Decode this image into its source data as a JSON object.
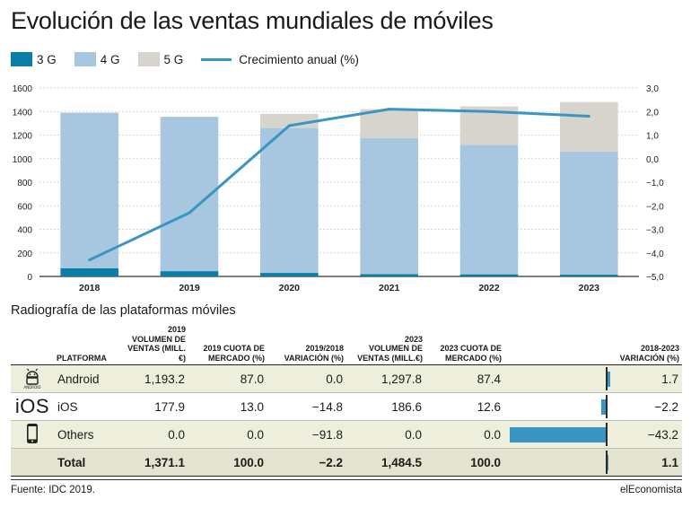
{
  "title": "Evolución de las ventas mundiales de móviles",
  "legend": {
    "g3": "3 G",
    "g4": "4 G",
    "g5": "5 G",
    "growth": "Crecimiento anual (%)"
  },
  "colors": {
    "g3": "#0b7ea8",
    "g4": "#a7c7e0",
    "g5": "#d7d4ce",
    "growth_line": "#3a95c3",
    "row_alt": "#eeeedd",
    "total_row": "#e3e3cf",
    "variation_bar": "#3a95c3"
  },
  "chart_data": {
    "type": "bar",
    "stacked": true,
    "categories": [
      "2018",
      "2019",
      "2020",
      "2021",
      "2022",
      "2023"
    ],
    "series": [
      {
        "name": "3 G",
        "values": [
          70,
          45,
          30,
          20,
          18,
          15
        ]
      },
      {
        "name": "4 G",
        "values": [
          1320,
          1310,
          1230,
          1155,
          1100,
          1045
        ]
      },
      {
        "name": "5 G",
        "values": [
          0,
          0,
          120,
          245,
          325,
          420
        ]
      }
    ],
    "line_series": {
      "name": "Crecimiento anual (%)",
      "axis": "right",
      "values": [
        -4.3,
        -2.3,
        1.4,
        2.1,
        2.0,
        1.8
      ]
    },
    "y_left": {
      "min": 0,
      "max": 1600,
      "ticks": [
        "0",
        "200",
        "400",
        "600",
        "800",
        "1000",
        "1200",
        "1400",
        "1600"
      ]
    },
    "y_right": {
      "min": -5,
      "max": 3,
      "ticks": [
        "−5,0",
        "−4,0",
        "−3,0",
        "−2,0",
        "−1,0",
        "0,0",
        "1,0",
        "2,0",
        "3,0"
      ]
    },
    "grid": true
  },
  "table": {
    "subtitle": "Radiografía de las plataformas móviles",
    "headers": {
      "platform": "Platforma",
      "sales2019": [
        "2019",
        "VOLUMEN DE",
        "VENTAS (MILL.€)"
      ],
      "share2019": [
        "2019 CUOTA DE",
        "MERCADO (%)"
      ],
      "var1918": [
        "2019/2018",
        "VARIACIÓN (%)"
      ],
      "sales2023": [
        "2023",
        "VOLUMEN DE",
        "VENTAS (MILL.€)"
      ],
      "share2023": [
        "2023 CUOTA DE",
        "MERCADO (%)"
      ],
      "var1823": [
        "2018-2023",
        "VARIACIÓN (%)"
      ]
    },
    "rows": [
      {
        "icon": "android-icon",
        "name": "Android",
        "sales2019": "1,193.2",
        "share2019": "87.0",
        "var1918": "0.0",
        "sales2023": "1,297.8",
        "share2023": "87.4",
        "var1823": "1.7",
        "var1823_value": 1.7
      },
      {
        "icon": "ios-icon",
        "icon_text": "iOS",
        "name": "iOS",
        "sales2019": "177.9",
        "share2019": "13.0",
        "var1918": "−14.8",
        "sales2023": "186.6",
        "share2023": "12.6",
        "var1823": "−2.2",
        "var1823_value": -2.2
      },
      {
        "icon": "phone-icon",
        "name": "Others",
        "sales2019": "0.0",
        "share2019": "0.0",
        "var1918": "−91.8",
        "sales2023": "0.0",
        "share2023": "0.0",
        "var1823": "−43.2",
        "var1823_value": -43.2
      }
    ],
    "total": {
      "name": "Total",
      "sales2019": "1,371.1",
      "share2019": "100.0",
      "var1918": "−2.2",
      "sales2023": "1,484.5",
      "share2023": "100.0",
      "var1823": "1.1",
      "var1823_value": 1.1
    }
  },
  "footer": {
    "source": "Fuente: IDC 2019.",
    "brand": "elEconomista"
  }
}
